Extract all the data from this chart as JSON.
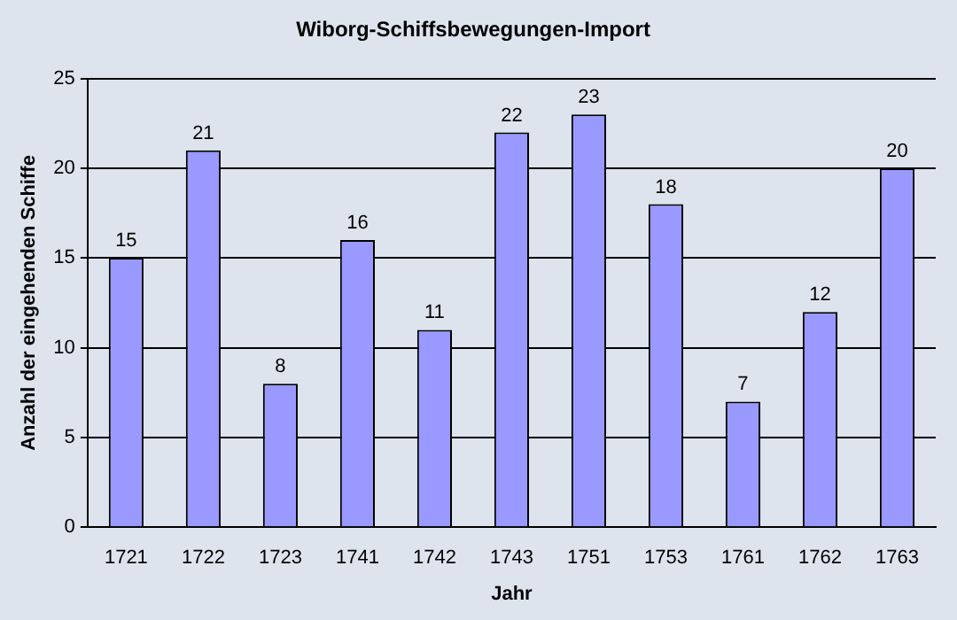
{
  "chart_data": {
    "type": "bar",
    "title": "Wiborg-Schiffsbewegungen-Import",
    "xlabel": "Jahr",
    "ylabel": "Anzahl der eingehenden Schiffe",
    "categories": [
      "1721",
      "1722",
      "1723",
      "1741",
      "1742",
      "1743",
      "1751",
      "1753",
      "1761",
      "1762",
      "1763"
    ],
    "values": [
      15,
      21,
      8,
      16,
      11,
      22,
      23,
      18,
      7,
      12,
      20
    ],
    "color": "#9999ff",
    "ylim": [
      0,
      25
    ],
    "yticks": [
      0,
      5,
      10,
      15,
      20,
      25
    ],
    "grid": "y",
    "legend": false,
    "data_labels": true
  }
}
